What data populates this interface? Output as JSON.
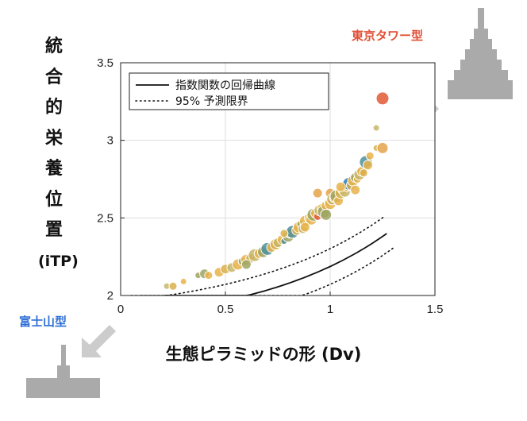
{
  "chart_data": {
    "type": "scatter",
    "ylabel_chars": [
      "統",
      "合",
      "的",
      "栄",
      "養",
      "位",
      "置",
      "(iTP)"
    ],
    "xlabel": "生態ピラミッドの形 (Dv)",
    "xlim": [
      0,
      1.5
    ],
    "ylim": [
      2,
      3.5
    ],
    "xticks": [
      "0",
      "0.5",
      "1",
      "1.5"
    ],
    "yticks": [
      "2",
      "2.5",
      "3",
      "3.5"
    ],
    "grid": true,
    "legend": {
      "placement": "top-left",
      "entries": [
        {
          "label": "指数関数の回帰曲線",
          "style": "solid"
        },
        {
          "label": "95% 予測限界",
          "style": "dotted"
        }
      ]
    },
    "fit_curve": {
      "a": 1.865,
      "b": 0.35,
      "c": 1.55,
      "x_from": 0.21,
      "x_to": 1.27
    },
    "pred_upper": {
      "x_from": 0.05,
      "x_to": 1.26
    },
    "pred_lower": {
      "x_from": 0.1,
      "x_to": 1.3
    },
    "annotations": {
      "top_right": "東京タワー型",
      "bottom_left": "富士山型"
    },
    "points": [
      [
        0.22,
        2.06,
        4,
        "#c8b66a"
      ],
      [
        0.25,
        2.06,
        5,
        "#d9b04a"
      ],
      [
        0.3,
        2.09,
        4,
        "#e8b34b"
      ],
      [
        0.37,
        2.13,
        4,
        "#9fa561"
      ],
      [
        0.4,
        2.14,
        6,
        "#9fa561"
      ],
      [
        0.42,
        2.13,
        5,
        "#e8b34b"
      ],
      [
        0.47,
        2.15,
        6,
        "#e8b34b"
      ],
      [
        0.5,
        2.17,
        6,
        "#d9b04a"
      ],
      [
        0.53,
        2.18,
        6,
        "#c8b66a"
      ],
      [
        0.56,
        2.2,
        7,
        "#e8b34b"
      ],
      [
        0.58,
        2.22,
        5,
        "#9fa561"
      ],
      [
        0.6,
        2.23,
        7,
        "#e8b34b"
      ],
      [
        0.62,
        2.24,
        6,
        "#d9b04a"
      ],
      [
        0.64,
        2.26,
        8,
        "#c8b66a"
      ],
      [
        0.66,
        2.27,
        6,
        "#e8b34b"
      ],
      [
        0.68,
        2.28,
        7,
        "#9fa561"
      ],
      [
        0.7,
        2.3,
        8,
        "#508f9a"
      ],
      [
        0.72,
        2.31,
        6,
        "#e8b34b"
      ],
      [
        0.74,
        2.33,
        7,
        "#d9b04a"
      ],
      [
        0.75,
        2.34,
        6,
        "#c8b66a"
      ],
      [
        0.77,
        2.36,
        6,
        "#e8b34b"
      ],
      [
        0.78,
        2.35,
        4,
        "#508f9a"
      ],
      [
        0.8,
        2.38,
        7,
        "#9fa561"
      ],
      [
        0.81,
        2.4,
        6,
        "#e8b34b"
      ],
      [
        0.82,
        2.41,
        8,
        "#508f9a"
      ],
      [
        0.84,
        2.42,
        6,
        "#d9b04a"
      ],
      [
        0.85,
        2.44,
        7,
        "#e8b34b"
      ],
      [
        0.86,
        2.46,
        5,
        "#9fa561"
      ],
      [
        0.87,
        2.43,
        6,
        "#c8b66a"
      ],
      [
        0.88,
        2.48,
        7,
        "#e8b34b"
      ],
      [
        0.9,
        2.5,
        6,
        "#d9b04a"
      ],
      [
        0.91,
        2.49,
        7,
        "#e8b34b"
      ],
      [
        0.92,
        2.52,
        8,
        "#9fa561"
      ],
      [
        0.93,
        2.53,
        6,
        "#e8b34b"
      ],
      [
        0.94,
        2.51,
        5,
        "#e05a35"
      ],
      [
        0.95,
        2.55,
        7,
        "#c8b66a"
      ],
      [
        0.96,
        2.56,
        6,
        "#e8b34b"
      ],
      [
        0.97,
        2.54,
        8,
        "#9fa561"
      ],
      [
        0.98,
        2.58,
        6,
        "#e8b34b"
      ],
      [
        0.99,
        2.6,
        5,
        "#d9b04a"
      ],
      [
        1.0,
        2.59,
        7,
        "#e8b34b"
      ],
      [
        1.0,
        2.66,
        6,
        "#e5a34a"
      ],
      [
        1.01,
        2.62,
        7,
        "#c8b66a"
      ],
      [
        1.02,
        2.63,
        6,
        "#e8b34b"
      ],
      [
        1.03,
        2.64,
        8,
        "#9fa561"
      ],
      [
        1.04,
        2.61,
        6,
        "#e8b34b"
      ],
      [
        1.05,
        2.66,
        7,
        "#d9b04a"
      ],
      [
        1.06,
        2.68,
        6,
        "#e8b34b"
      ],
      [
        1.07,
        2.67,
        7,
        "#c8b66a"
      ],
      [
        1.08,
        2.7,
        6,
        "#e8b34b"
      ],
      [
        1.09,
        2.72,
        8,
        "#2d7bb6"
      ],
      [
        1.1,
        2.71,
        6,
        "#d9b04a"
      ],
      [
        1.11,
        2.74,
        7,
        "#e8b34b"
      ],
      [
        1.12,
        2.76,
        6,
        "#9fa561"
      ],
      [
        1.13,
        2.75,
        5,
        "#e8b34b"
      ],
      [
        1.14,
        2.78,
        7,
        "#c8b66a"
      ],
      [
        1.15,
        2.8,
        6,
        "#e8b34b"
      ],
      [
        1.16,
        2.79,
        5,
        "#d9b04a"
      ],
      [
        1.17,
        2.86,
        8,
        "#508f9a"
      ],
      [
        1.18,
        2.84,
        6,
        "#e8b34b"
      ],
      [
        1.19,
        2.9,
        5,
        "#e8b34b"
      ],
      [
        1.22,
        2.95,
        4,
        "#d9b04a"
      ],
      [
        1.25,
        2.95,
        7,
        "#e5a34a"
      ],
      [
        1.25,
        3.27,
        8,
        "#e05a35"
      ],
      [
        1.22,
        3.08,
        4,
        "#c8b66a"
      ],
      [
        0.94,
        2.66,
        6,
        "#e5a34a"
      ],
      [
        1.05,
        2.7,
        6,
        "#e8b34b"
      ],
      [
        0.88,
        2.44,
        6,
        "#e8b34b"
      ],
      [
        0.78,
        2.4,
        5,
        "#d9b04a"
      ],
      [
        0.98,
        2.52,
        7,
        "#9fa561"
      ],
      [
        1.12,
        2.68,
        6,
        "#e8b34b"
      ],
      [
        0.6,
        2.2,
        6,
        "#9fa561"
      ]
    ]
  }
}
